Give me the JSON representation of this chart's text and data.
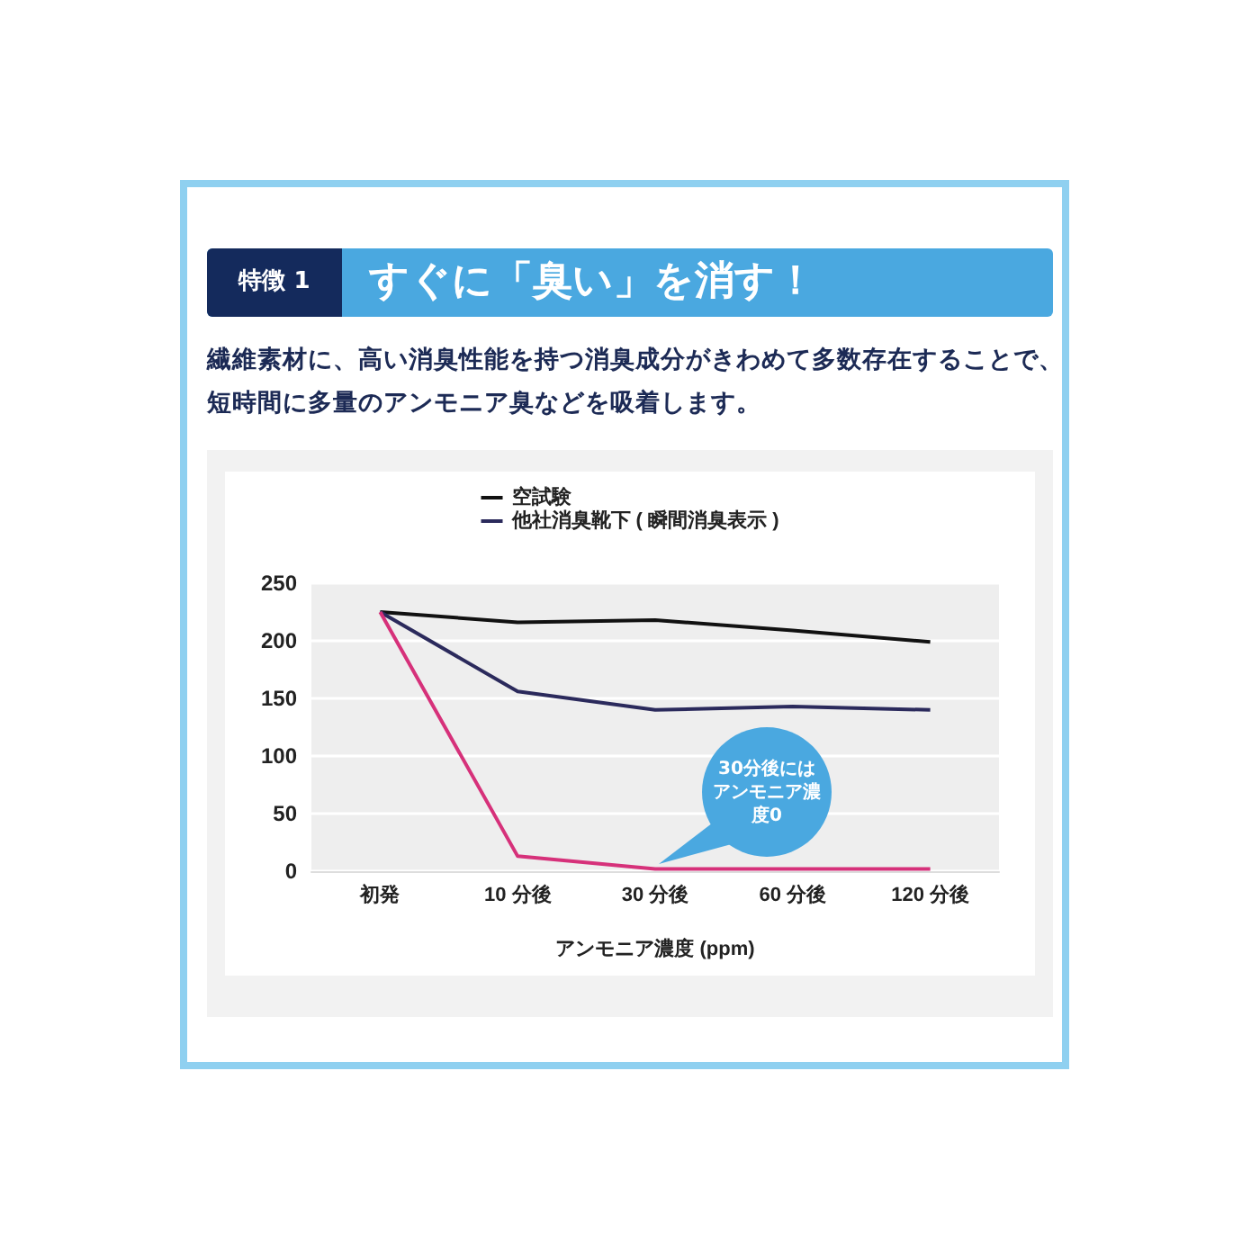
{
  "chart_data": {
    "type": "line",
    "title": "すぐに「臭い」を消す！",
    "subtitle": "繊維素材に、高い消臭性能を持つ消臭成分がきわめて多数存在することで、短時間に多量のアンモニア臭などを吸着します。",
    "xlabel": "アンモニア濃度 (ppm)",
    "categories": [
      "初発",
      "10 分後",
      "30 分後",
      "60 分後",
      "120 分後"
    ],
    "series": [
      {
        "name": "空試験",
        "color": "#111111",
        "values": [
          225,
          216,
          218,
          209,
          199
        ]
      },
      {
        "name": "他社消臭靴下 ( 瞬間消臭表示 )",
        "color": "#2b2a5c",
        "values": [
          225,
          156,
          140,
          143,
          140
        ]
      },
      {
        "color": "#d6317a",
        "values": [
          225,
          13,
          2,
          2,
          2
        ]
      }
    ],
    "annotations": [
      "特徴 1",
      "30分後にはアンモニア濃度0"
    ],
    "ylim": [
      0,
      250
    ],
    "yticks": [
      0,
      50,
      100,
      150,
      200,
      250
    ],
    "grid": "y",
    "legend": "top",
    "marker": "none",
    "line_style": "solid"
  }
}
